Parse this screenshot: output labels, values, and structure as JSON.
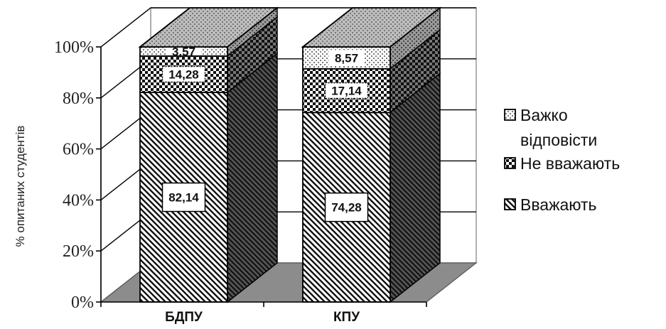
{
  "chart_data": {
    "type": "bar",
    "stacked": true,
    "percent_stacked": true,
    "three_d": true,
    "categories": [
      "БДПУ",
      "КПУ"
    ],
    "series": [
      {
        "name": "Вважають",
        "values": [
          82.14,
          74.28
        ],
        "labels": [
          "82,14",
          "74,28"
        ],
        "pattern": "diagonal-stripes"
      },
      {
        "name": "Не вважають",
        "values": [
          14.28,
          17.14
        ],
        "labels": [
          "14,28",
          "17,14"
        ],
        "pattern": "checkerboard"
      },
      {
        "name": "Важко відповісти",
        "values": [
          3.57,
          8.57
        ],
        "labels": [
          "3,57",
          "8,57"
        ],
        "pattern": "dotted-light"
      }
    ],
    "ylabel": "% опитаних студентів",
    "yticks": [
      "0%",
      "20%",
      "40%",
      "60%",
      "80%",
      "100%"
    ],
    "ylim": [
      0,
      100
    ],
    "legend_position": "right",
    "legend": [
      "Важко відповісти",
      "Не вважають",
      "Вважають"
    ],
    "grid": true,
    "colors": {
      "floor": "#8c8c8c",
      "top": "#c0c0c0",
      "stroke": "#000000",
      "grid": "#000000"
    }
  }
}
